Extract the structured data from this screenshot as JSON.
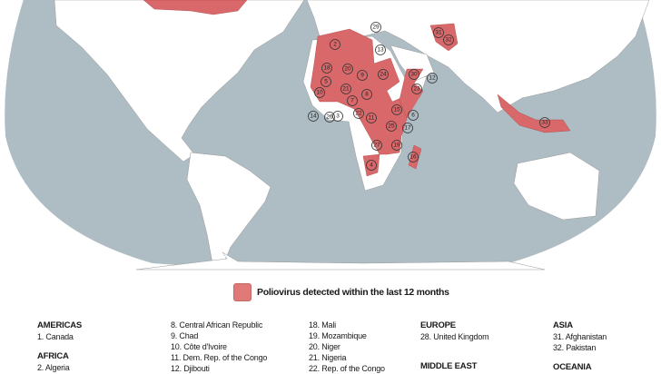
{
  "colors": {
    "ocean": "#aebcc4",
    "land": "#ffffff",
    "affected": "#d9686a",
    "border": "#8a8a8a"
  },
  "map": {
    "labels": [
      "2",
      "18",
      "20",
      "9",
      "24",
      "13",
      "29",
      "30",
      "31",
      "32",
      "12",
      "23",
      "5",
      "21",
      "10",
      "8",
      "7",
      "14",
      "26",
      "3",
      "22",
      "11",
      "15",
      "6",
      "25",
      "17",
      "27",
      "19",
      "16",
      "4",
      "33"
    ]
  },
  "legend": {
    "label": "Poliovirus detected within the last 12 months"
  },
  "columns": [
    {
      "groups": [
        {
          "heading": "AMERICAS",
          "items": [
            "1.  Canada"
          ]
        },
        {
          "heading": "AFRICA",
          "items": [
            "2.  Algeria"
          ]
        }
      ]
    },
    {
      "groups": [
        {
          "heading": "",
          "items": [
            "8.  Central African Republic",
            "9.  Chad",
            "10.  Côte d'Ivoire",
            "11.  Dem. Rep. of the Congo",
            "12.  Djibouti"
          ]
        }
      ]
    },
    {
      "groups": [
        {
          "heading": "",
          "items": [
            "18.  Mali",
            "19.  Mozambique",
            "20.  Niger",
            "21.  Nigeria",
            "22.  Rep. of the Congo"
          ]
        }
      ]
    },
    {
      "groups": [
        {
          "heading": "EUROPE",
          "items": [
            "28.  United Kingdom"
          ]
        },
        {
          "heading": "MIDDLE EAST",
          "items": []
        }
      ]
    },
    {
      "groups": [
        {
          "heading": "ASIA",
          "items": [
            "31.  Afghanistan",
            "32.  Pakistan"
          ]
        },
        {
          "heading": "OCEANIA",
          "items": []
        }
      ]
    }
  ]
}
